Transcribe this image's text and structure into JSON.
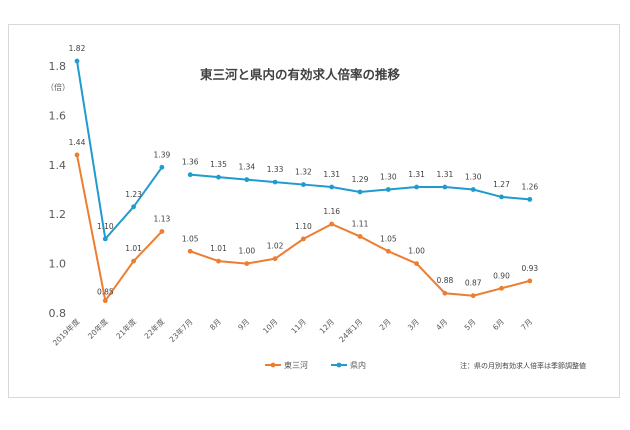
{
  "chart_data": {
    "type": "line",
    "title": "東三河と県内の有効求人倍率の推移",
    "ylabel": "（倍）",
    "ylim": [
      0.8,
      1.8
    ],
    "yticks": [
      "0.8",
      "1.0",
      "1.2",
      "1.4",
      "1.6",
      "1.8"
    ],
    "grid": false,
    "legend": "bottom-center",
    "note": "注：県の月別有効求人倍率は季節調整値",
    "categories": [
      "2019年度",
      "20年度",
      "21年度",
      "22年度",
      "23年7月",
      "8月",
      "9月",
      "10月",
      "11月",
      "12月",
      "24年1月",
      "2月",
      "3月",
      "4月",
      "5月",
      "6月",
      "7月"
    ],
    "segments": [
      [
        0,
        3
      ],
      [
        4,
        16
      ]
    ],
    "series": [
      {
        "name": "東三河",
        "color": "#ed7d31",
        "values": [
          1.44,
          0.85,
          1.01,
          1.13,
          1.05,
          1.01,
          1.0,
          1.02,
          1.1,
          1.16,
          1.11,
          1.05,
          1.0,
          0.88,
          0.87,
          0.9,
          0.93
        ],
        "labels": [
          "1.44",
          "0.85",
          "1.01",
          "1.13",
          "1.05",
          "1.01",
          "1.00",
          "1.02",
          "1.10",
          "1.16",
          "1.11",
          "1.05",
          "1.00",
          "0.88",
          "0.87",
          "0.90",
          "0.93"
        ]
      },
      {
        "name": "県内",
        "color": "#1f9bcf",
        "values": [
          1.82,
          1.1,
          1.23,
          1.39,
          1.36,
          1.35,
          1.34,
          1.33,
          1.32,
          1.31,
          1.29,
          1.3,
          1.31,
          1.31,
          1.3,
          1.27,
          1.26
        ],
        "labels": [
          "1.82",
          "1.10",
          "1.23",
          "1.39",
          "1.36",
          "1.35",
          "1.34",
          "1.33",
          "1.32",
          "1.31",
          "1.29",
          "1.30",
          "1.31",
          "1.31",
          "1.30",
          "1.27",
          "1.26"
        ]
      }
    ]
  }
}
